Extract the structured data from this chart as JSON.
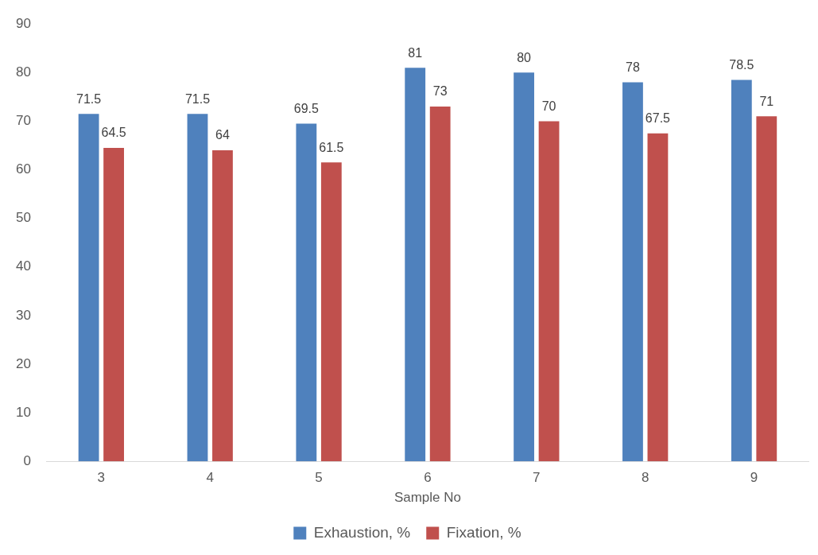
{
  "chart_data": {
    "type": "bar",
    "xlabel": "Sample No",
    "categories": [
      "3",
      "4",
      "5",
      "6",
      "7",
      "8",
      "9"
    ],
    "series": [
      {
        "name": "Exhaustion, %",
        "color": "#4f81bd",
        "values": [
          71.5,
          71.5,
          69.5,
          81,
          80,
          78,
          78.5
        ]
      },
      {
        "name": "Fixation, %",
        "color": "#c0504d",
        "values": [
          64.5,
          64,
          61.5,
          73,
          70,
          67.5,
          71
        ]
      }
    ],
    "ylim": [
      0,
      90
    ],
    "yticks": [
      0,
      10,
      20,
      30,
      40,
      50,
      60,
      70,
      80,
      90
    ],
    "grid": false,
    "legend": "bottom",
    "data_labels": true
  }
}
